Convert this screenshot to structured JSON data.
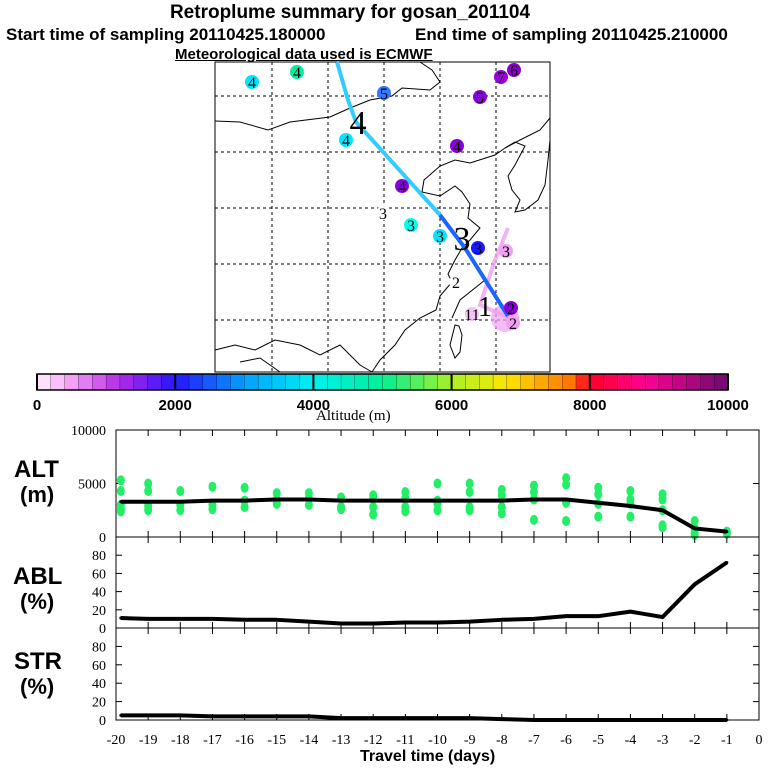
{
  "header": {
    "title": "Retroplume summary for gosan_201104",
    "start_time": "Start time of sampling 20110425.180000",
    "end_time": "End time of sampling 20110425.210000",
    "met_data": "Meteorological data used is ECMWF"
  },
  "map": {
    "markers": [
      {
        "label": "4",
        "color": "#00e5ff"
      },
      {
        "label": "4",
        "color": "#00f0a0"
      },
      {
        "label": "5",
        "color": "#3377ff"
      },
      {
        "label": "7",
        "color": "#9900dd"
      },
      {
        "label": "6",
        "color": "#8a00cc"
      },
      {
        "label": "5",
        "color": "#8a00dd"
      },
      {
        "label": "4",
        "color": "#00e5ff"
      },
      {
        "label": "4",
        "color": "#8a00dd"
      },
      {
        "label": "4",
        "color": "#8a00dd"
      },
      {
        "label": "3",
        "color": "#ffffff"
      },
      {
        "label": "3",
        "color": "#00ffee"
      },
      {
        "label": "3",
        "color": "#00e5ff"
      },
      {
        "label": "3",
        "color": "#1a1aff"
      },
      {
        "label": "3",
        "color": "#f0a0f0"
      },
      {
        "label": "2",
        "color": "#ffffff"
      },
      {
        "label": "2",
        "color": "#8a00dd"
      },
      {
        "label": "2",
        "color": "#f0a0f0"
      },
      {
        "label": "11",
        "color": "#f5c0f5"
      }
    ],
    "track_labels": [
      "4",
      "3",
      "1"
    ],
    "track_colors": [
      "#33ccff",
      "#1a66ff",
      "#f0a0f0"
    ]
  },
  "colorbar": {
    "ticks": [
      "0",
      "2000",
      "4000",
      "6000",
      "8000",
      "10000"
    ],
    "label": "Altitude (m)",
    "range": [
      0,
      10000
    ]
  },
  "chart_data": [
    {
      "type": "line",
      "panel": "ALT",
      "ylabel": "ALT",
      "yunit": "(m)",
      "ylim": [
        0,
        10000
      ],
      "yticks": [
        "0",
        "5000",
        "10000"
      ],
      "x": [
        -19.85,
        -19,
        -18,
        -17,
        -16,
        -15,
        -14,
        -13,
        -12,
        -11,
        -10,
        -9,
        -8,
        -7,
        -6,
        -5,
        -4,
        -3,
        -2,
        -1
      ],
      "values": [
        3300,
        3300,
        3300,
        3400,
        3400,
        3500,
        3500,
        3400,
        3400,
        3400,
        3400,
        3400,
        3400,
        3500,
        3500,
        3200,
        2900,
        2500,
        800,
        500
      ],
      "scatter_color": "#22ee66",
      "scatter": [
        [
          5300,
          4300,
          3000,
          2600,
          2400
        ],
        [
          5000,
          4300,
          2900,
          2500
        ],
        [
          4300,
          3000,
          2500
        ],
        [
          4700,
          3000,
          2600
        ],
        [
          4600,
          3400,
          2800
        ],
        [
          4100,
          3500,
          3100
        ],
        [
          4100,
          3600,
          3000
        ],
        [
          3700,
          2800,
          2600
        ],
        [
          3900,
          3600,
          2800,
          2100
        ],
        [
          4200,
          3600,
          2800,
          2400
        ],
        [
          5000,
          3400,
          3100,
          2500
        ],
        [
          5000,
          4200,
          2800,
          2500
        ],
        [
          4400,
          3900,
          2800,
          2200
        ],
        [
          4800,
          4200,
          3500,
          1600
        ],
        [
          5500,
          4900,
          3200,
          1500
        ],
        [
          4600,
          4000,
          3100,
          1900
        ],
        [
          4300,
          3500,
          3100,
          1900
        ],
        [
          4000,
          3500,
          2500,
          1100,
          900
        ],
        [
          1500,
          800,
          400,
          200
        ],
        [
          500,
          300
        ]
      ]
    },
    {
      "type": "line",
      "panel": "ABL",
      "ylabel": "ABL",
      "yunit": "(%)",
      "ylim": [
        0,
        100
      ],
      "yticks": [
        "0",
        "20",
        "40",
        "60",
        "80"
      ],
      "x": [
        -19.85,
        -19,
        -18,
        -17,
        -16,
        -15,
        -14,
        -13,
        -12,
        -11,
        -10,
        -9,
        -8,
        -7,
        -6,
        -5,
        -4,
        -3,
        -2,
        -1
      ],
      "values": [
        11,
        10,
        10,
        10,
        9,
        9,
        7,
        5,
        5,
        6,
        6,
        7,
        9,
        10,
        13,
        13,
        18,
        12,
        48,
        72
      ]
    },
    {
      "type": "line",
      "panel": "STR",
      "ylabel": "STR",
      "yunit": "(%)",
      "ylim": [
        0,
        100
      ],
      "yticks": [
        "0",
        "20",
        "40",
        "60",
        "80"
      ],
      "x": [
        -19.85,
        -19,
        -18,
        -17,
        -16,
        -15,
        -14,
        -13,
        -12,
        -11,
        -10,
        -9,
        -8,
        -7,
        -6,
        -5,
        -4,
        -3,
        -2,
        -1
      ],
      "values": [
        5,
        5,
        5,
        4,
        4,
        4,
        4,
        2,
        2,
        2,
        2,
        2,
        1,
        0,
        0,
        0,
        0,
        0,
        0,
        0
      ],
      "xlabel": "Travel time (days)",
      "xlim": [
        -20,
        0
      ],
      "xticks": [
        "-20",
        "-19",
        "-18",
        "-17",
        "-16",
        "-15",
        "-14",
        "-13",
        "-12",
        "-11",
        "-10",
        "-9",
        "-8",
        "-7",
        "-6",
        "-5",
        "-4",
        "-3",
        "-2",
        "-1",
        "0"
      ]
    }
  ]
}
